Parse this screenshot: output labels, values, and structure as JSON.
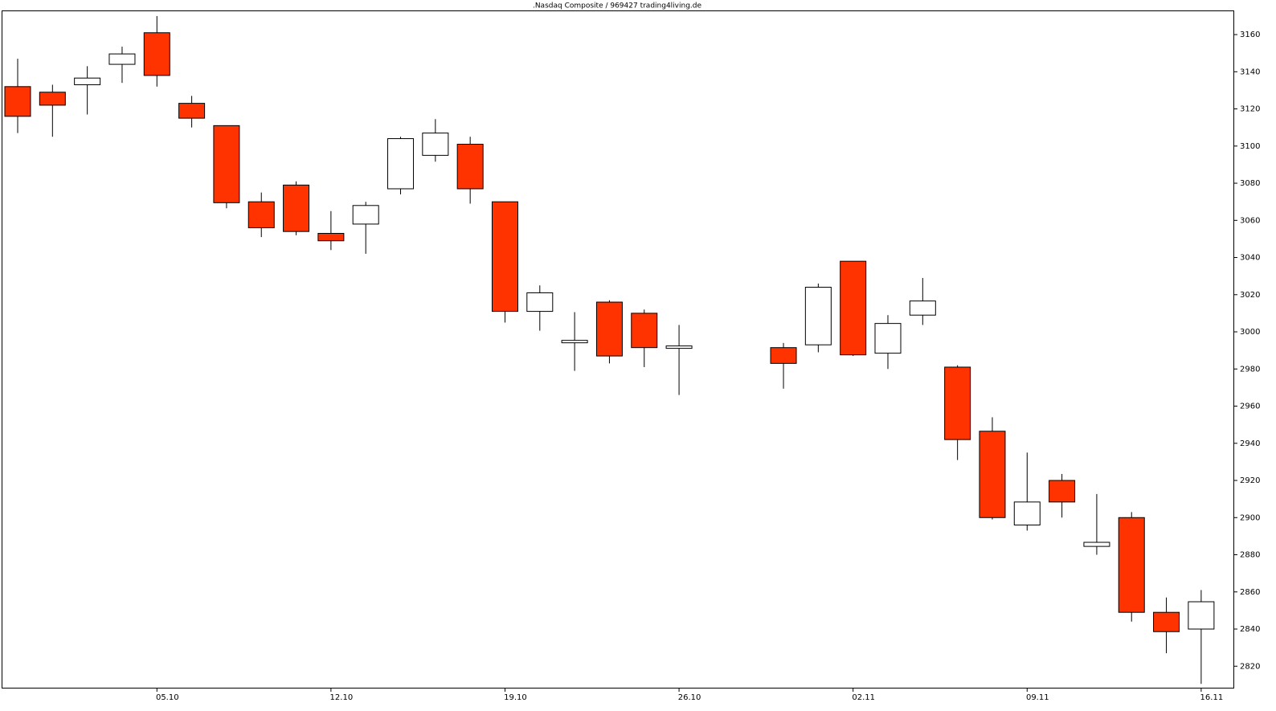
{
  "chart_data": {
    "type": "candlestick",
    "title": ".Nasdaq Composite / 969427 trading4living.de",
    "categories": [
      null,
      null,
      null,
      null,
      "05.10",
      null,
      null,
      null,
      null,
      "12.10",
      null,
      null,
      null,
      null,
      "19.10",
      null,
      null,
      null,
      null,
      "26.10",
      null,
      null,
      null,
      null,
      "02.11",
      null,
      null,
      null,
      null,
      "09.11",
      null,
      null,
      null,
      null,
      "16.11"
    ],
    "open": [
      3132,
      3129,
      3133,
      3144,
      3161,
      3123,
      3111,
      3070,
      3079,
      3053,
      3058,
      3077,
      3095,
      3101,
      3070,
      3011,
      2994.1,
      3016,
      3010,
      2991.1,
      null,
      null,
      2991.5,
      2993,
      3038,
      2988.5,
      3009,
      2981,
      2946.5,
      2896,
      2920,
      2884.5,
      2900,
      2849,
      2840
    ],
    "high": [
      3147,
      3133,
      3143,
      3153.5,
      3170,
      3127,
      3111,
      3075,
      3081,
      3065,
      3070,
      3105,
      3114.5,
      3105,
      3070,
      3025,
      3010.6,
      3017,
      3012,
      3003.7,
      null,
      null,
      2994,
      3026,
      3038,
      3009,
      3029,
      2982,
      2954,
      2935,
      2923.5,
      2912.7,
      2903,
      2857,
      2861
    ],
    "low": [
      3107,
      3105,
      3117,
      3134,
      3132,
      3110,
      3066.5,
      3051,
      3052,
      3044,
      3042,
      3074,
      3091.6,
      3069,
      3005,
      3000.6,
      2979,
      2983,
      2981,
      2966,
      null,
      null,
      2969.4,
      2989,
      2987,
      2980,
      3003.7,
      2931,
      2899,
      2893,
      2900,
      2880,
      2844,
      2827,
      2810.5
    ],
    "close": [
      3116,
      3122,
      3136.6,
      3149.6,
      3138,
      3115,
      3069.5,
      3056,
      3054,
      3049,
      3068,
      3104,
      3107,
      3077,
      3011,
      3021,
      2995.4,
      2987,
      2991.5,
      2992.4,
      null,
      null,
      2983,
      3024,
      2987.6,
      3004.5,
      3016.6,
      2942,
      2900,
      2908.4,
      2908.4,
      2886.7,
      2849,
      2838.6,
      2854.7
    ],
    "up_color": "#ffffff",
    "down_color": "#ff3300",
    "ylim": [
      2808,
      3173
    ],
    "yticks": [
      2820,
      2840,
      2860,
      2880,
      2900,
      2920,
      2940,
      2960,
      2980,
      3000,
      3020,
      3040,
      3060,
      3080,
      3100,
      3120,
      3140,
      3160
    ]
  }
}
